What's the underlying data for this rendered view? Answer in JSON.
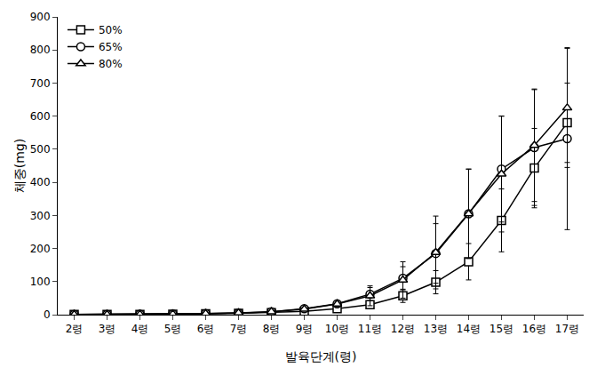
{
  "chart_data": {
    "type": "line",
    "x_label": "발육단계(령)",
    "y_label": "체중(mg)",
    "categories": [
      "2령",
      "3령",
      "4령",
      "5령",
      "6령",
      "7령",
      "8령",
      "9령",
      "10령",
      "11령",
      "12령",
      "13령",
      "14령",
      "15령",
      "16령",
      "17령"
    ],
    "series": [
      {
        "name": "50%",
        "color": "#000000",
        "marker": "square",
        "values": [
          0.5,
          0.7,
          1,
          1.5,
          2.5,
          4,
          6,
          10,
          18,
          30,
          57,
          98,
          160,
          285,
          443,
          580
        ],
        "errors": [
          0.1,
          0.1,
          0.2,
          0.3,
          0.5,
          1,
          1.5,
          2,
          4,
          10,
          20,
          35,
          55,
          95,
          120,
          120
        ]
      },
      {
        "name": "65%",
        "color": "#000000",
        "marker": "circle",
        "values": [
          0.5,
          0.8,
          1.2,
          2,
          3.5,
          5,
          9,
          18,
          33,
          62,
          110,
          185,
          305,
          440,
          505,
          532
        ],
        "errors": [
          0.1,
          0.1,
          0.2,
          0.4,
          0.6,
          1,
          2,
          4,
          8,
          20,
          35,
          90,
          135,
          160,
          175,
          275
        ]
      },
      {
        "name": "80%",
        "color": "#000000",
        "marker": "triangle",
        "values": [
          0.5,
          0.8,
          1.2,
          2,
          3.5,
          5.5,
          9,
          17,
          32,
          57,
          105,
          188,
          305,
          425,
          512,
          625
        ],
        "errors": [
          0.1,
          0.1,
          0.2,
          0.4,
          0.6,
          1,
          2,
          4,
          8,
          30,
          55,
          110,
          135,
          175,
          170,
          180
        ]
      }
    ],
    "ylim": [
      0,
      900
    ],
    "yticks": [
      0,
      100,
      200,
      300,
      400,
      500,
      600,
      700,
      800,
      900
    ],
    "grid": false,
    "legend": "upper left"
  }
}
